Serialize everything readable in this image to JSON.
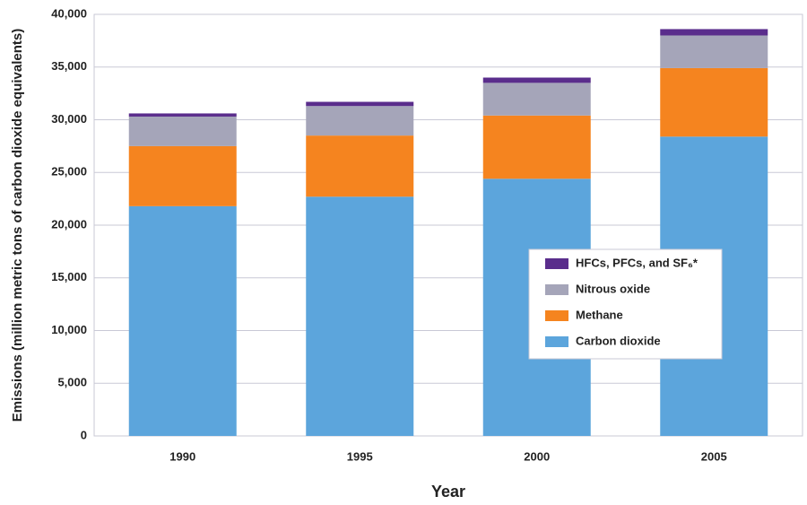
{
  "chart_data": {
    "type": "bar",
    "stacked": true,
    "x_label": "Year",
    "y_label": "Emissions (million metric tons of carbon dioxide equivalents)",
    "categories": [
      "1990",
      "1995",
      "2000",
      "2005"
    ],
    "series": [
      {
        "name": "Carbon dioxide",
        "color": "#5ca5dc",
        "values": [
          21800,
          22700,
          24400,
          28400
        ]
      },
      {
        "name": "Methane",
        "color": "#f5841f",
        "values": [
          5700,
          5800,
          6000,
          6500
        ]
      },
      {
        "name": "Nitrous oxide",
        "color": "#a5a5b9",
        "values": [
          2800,
          2800,
          3100,
          3100
        ]
      },
      {
        "name": "HFCs, PFCs, and SF₆*",
        "color": "#5a2d8c",
        "values": [
          300,
          400,
          500,
          600
        ]
      }
    ],
    "ylim": [
      0,
      40000
    ],
    "yticks": [
      0,
      {
        "value": 5000,
        "label": "5,000"
      },
      {
        "value": 10000,
        "label": "10,000"
      },
      {
        "value": 15000,
        "label": "15,000"
      },
      {
        "value": 20000,
        "label": "20,000"
      },
      {
        "value": 25000,
        "label": "25,000"
      },
      {
        "value": 30000,
        "label": "30,000"
      },
      {
        "value": 35000,
        "label": "35,000"
      },
      {
        "value": 40000,
        "label": "40,000"
      }
    ],
    "grid": true,
    "legend": "right"
  }
}
